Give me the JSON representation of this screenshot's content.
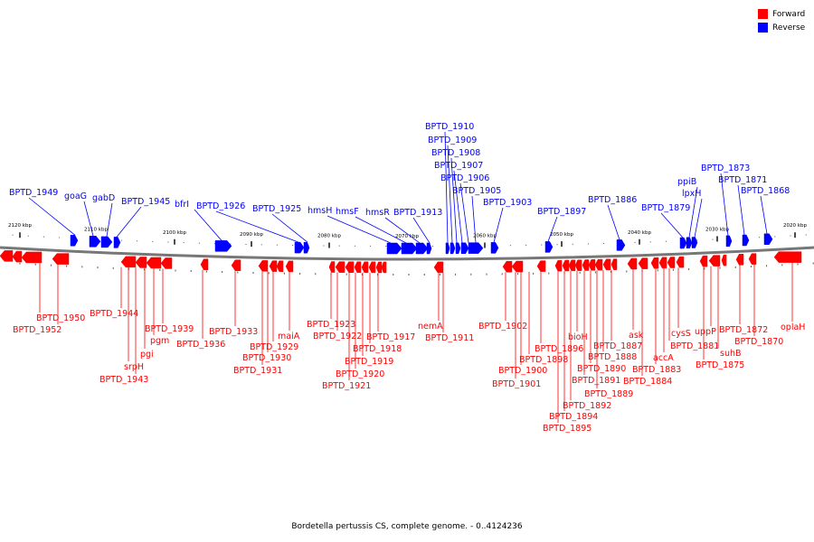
{
  "legend": {
    "forward_label": "Forward",
    "reverse_label": "Reverse",
    "forward_color": "#ff0000",
    "reverse_color": "#0000ff"
  },
  "caption": "Bordetella pertussis CS, complete genome. - 0..4124236",
  "scale_ticks": [
    "2120 kbp",
    "2110 kbp",
    "2100 kbp",
    "2090 kbp",
    "2080 kbp",
    "2070 kbp",
    "2060 kbp",
    "2050 kbp",
    "2040 kbp",
    "2030 kbp",
    "2020 kbp"
  ],
  "reverse_genes": [
    "BPTD_1949",
    "goaG",
    "gabD",
    "BPTD_1945",
    "bfrI",
    "BPTD_1926",
    "BPTD_1925",
    "hmsH",
    "hmsF",
    "hmsR",
    "BPTD_1913",
    "BPTD_1910",
    "BPTD_1909",
    "BPTD_1908",
    "BPTD_1907",
    "BPTD_1906",
    "BPTD_1905",
    "BPTD_1903",
    "BPTD_1897",
    "BPTD_1886",
    "BPTD_1879",
    "ppiB",
    "lpxH",
    "BPTD_1873",
    "BPTD_1871",
    "BPTD_1868"
  ],
  "forward_genes": [
    "BPTD_1950",
    "BPTD_1952",
    "BPTD_1944",
    "srpH",
    "BPTD_1943",
    "pgi",
    "pgm",
    "BPTD_1939",
    "BPTD_1936",
    "BPTD_1933",
    "BPTD_1931",
    "BPTD_1930",
    "BPTD_1929",
    "maiA",
    "BPTD_1923",
    "BPTD_1922",
    "BPTD_1921",
    "BPTD_1920",
    "BPTD_1919",
    "BPTD_1918",
    "BPTD_1917",
    "nemA",
    "BPTD_1911",
    "BPTD_1902",
    "BPTD_1901",
    "BPTD_1900",
    "BPTD_1898",
    "BPTD_1896",
    "BPTD_1895",
    "BPTD_1894",
    "BPTD_1892",
    "bioH",
    "BPTD_1891",
    "BPTD_1890",
    "BPTD_1889",
    "BPTD_1888",
    "BPTD_1887",
    "ask",
    "BPTD_1884",
    "BPTD_1883",
    "accA",
    "BPTD_1881",
    "cysS",
    "BPTD_1875",
    "uppP",
    "suhB",
    "BPTD_1872",
    "BPTD_1870",
    "oplaH"
  ]
}
